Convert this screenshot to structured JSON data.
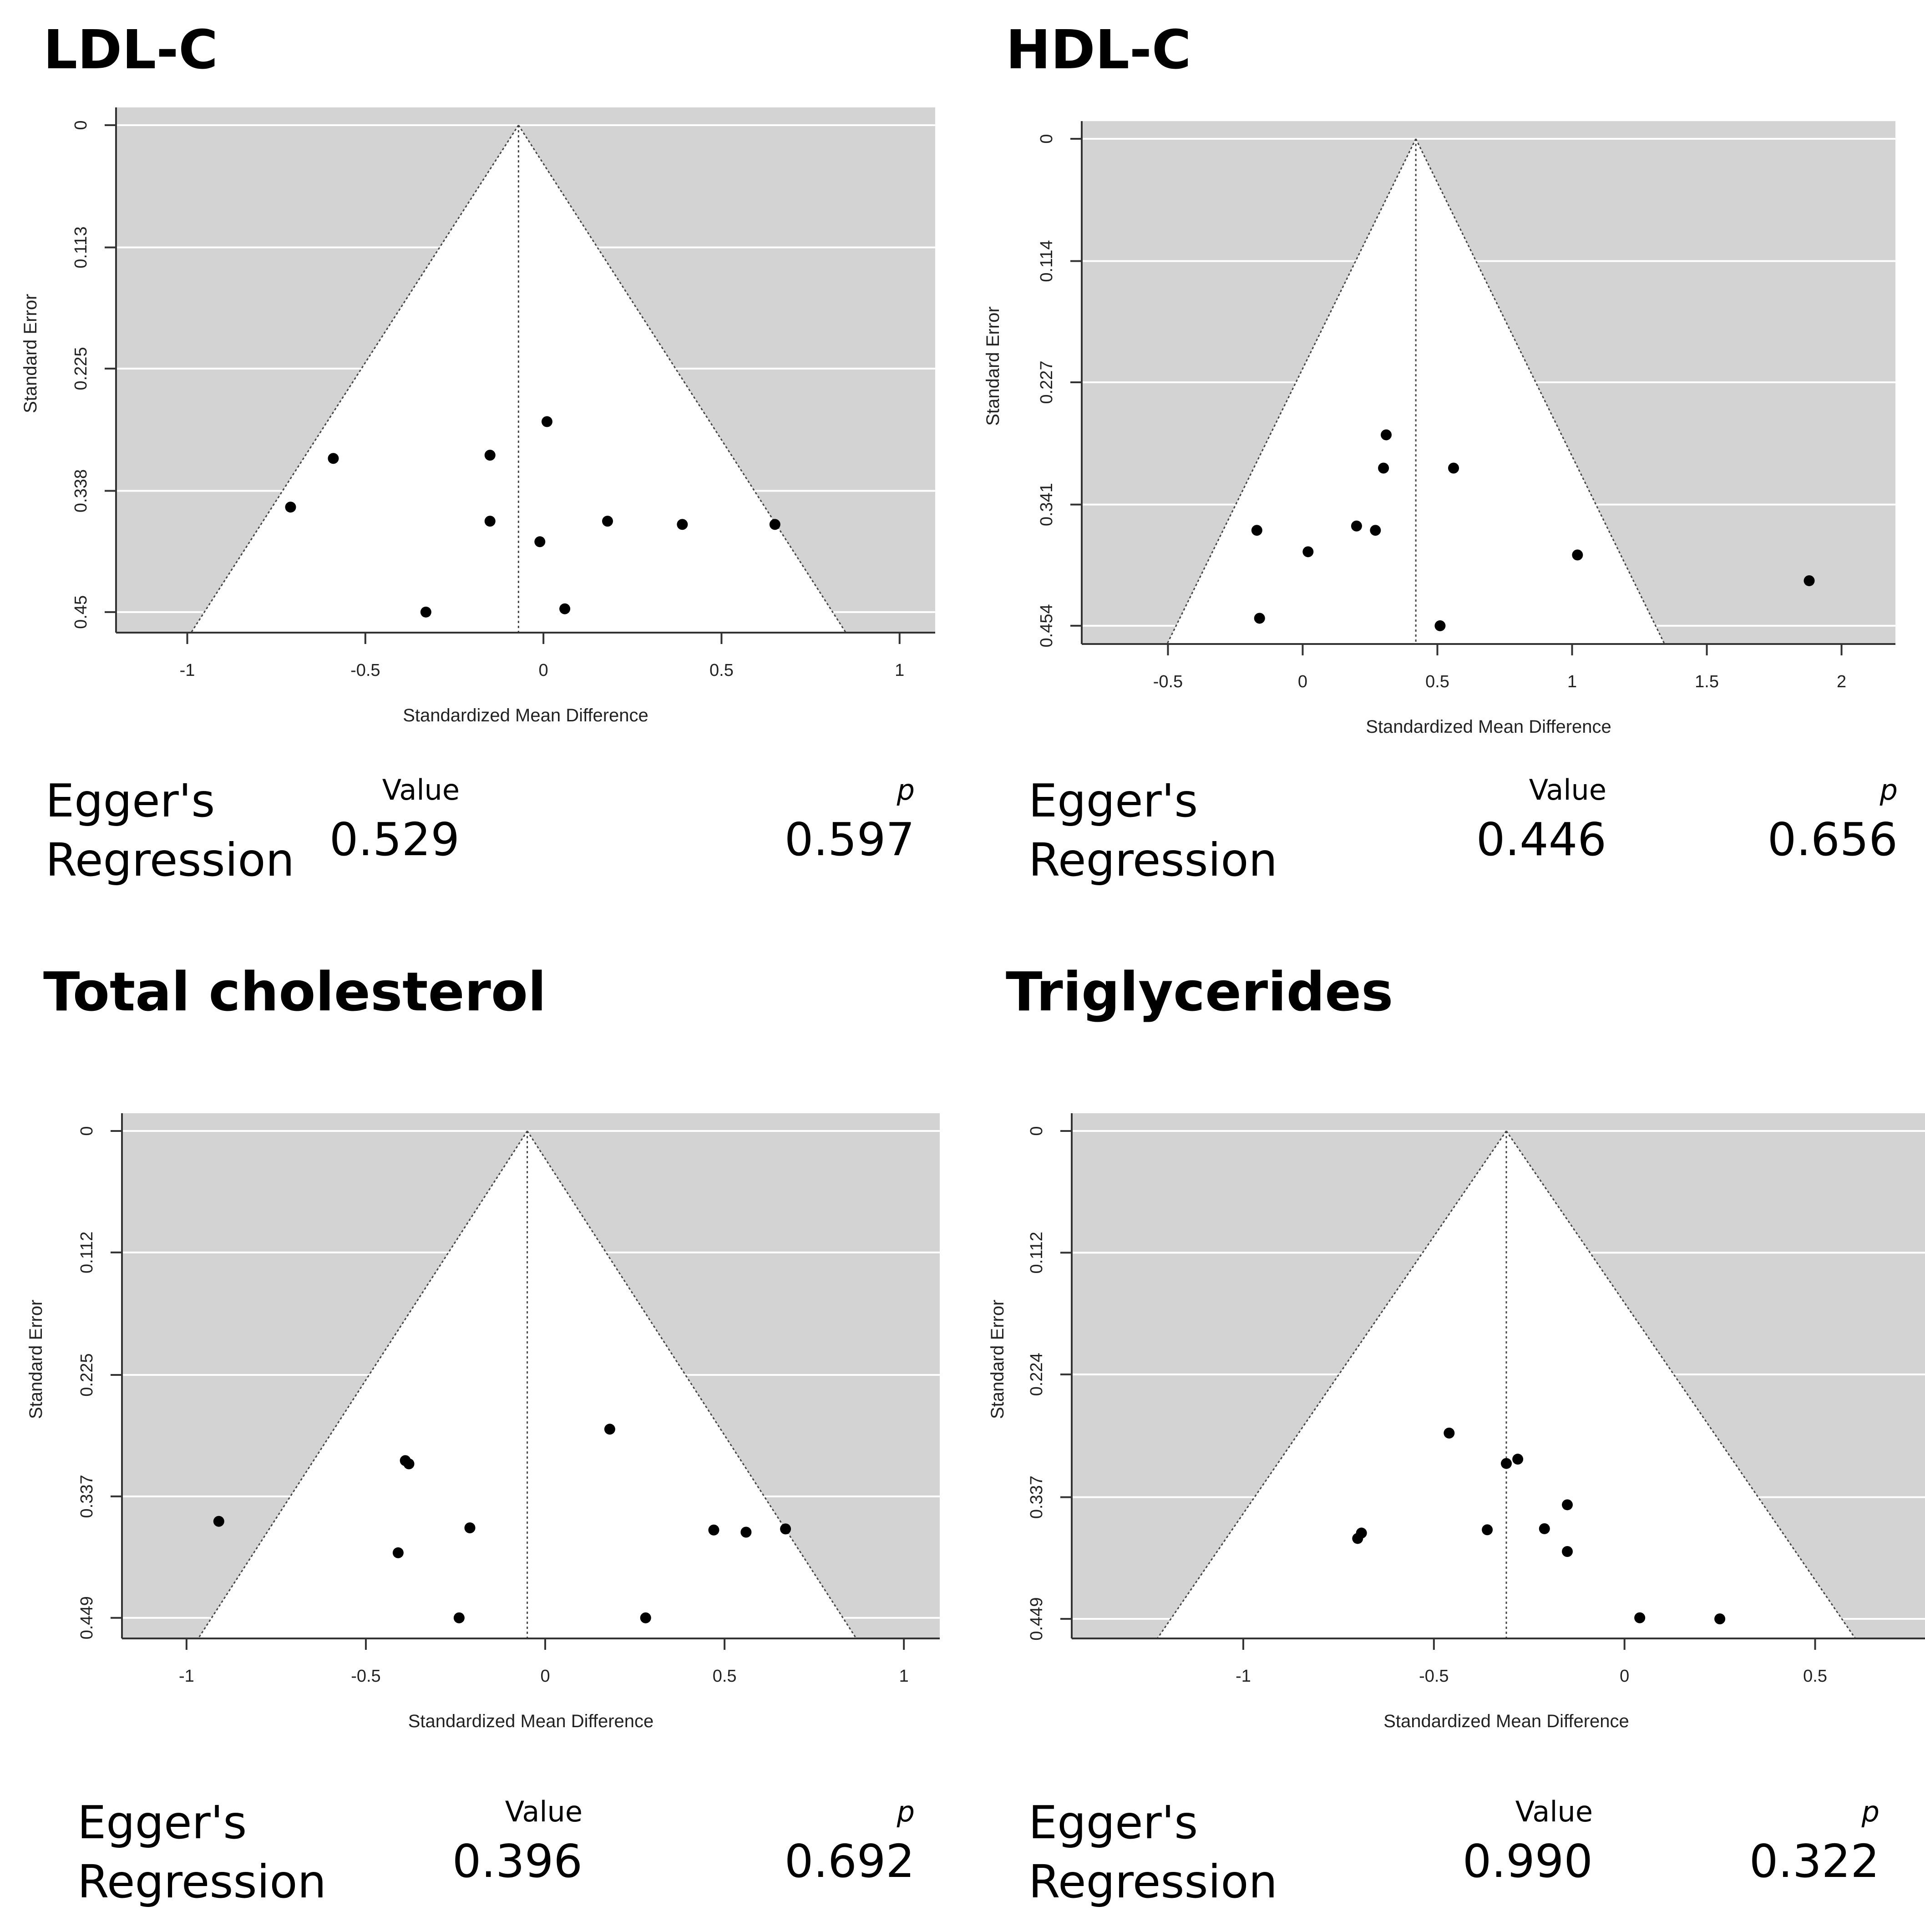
{
  "chart_data": [
    {
      "type": "scatter",
      "subtype": "funnel",
      "title": "LDL-C",
      "xlabel": "Standardized Mean Difference",
      "ylabel": "Standard Error",
      "xlim": [
        -1.2,
        1.1
      ],
      "ylim": [
        0.469,
        0
      ],
      "x_ticks": [
        -1,
        -0.5,
        0,
        0.5,
        1
      ],
      "x_tick_labels": [
        "-1",
        "-0.5",
        "0",
        "0.5",
        "1"
      ],
      "y_ticks": [
        0,
        0.113,
        0.225,
        0.338,
        0.45
      ],
      "y_tick_labels": [
        "0",
        "0.113",
        "0.225",
        "0.338",
        "0.45"
      ],
      "center": -0.07,
      "points": [
        {
          "x": 0.01,
          "y": 0.274
        },
        {
          "x": -0.59,
          "y": 0.308
        },
        {
          "x": -0.15,
          "y": 0.305
        },
        {
          "x": -0.71,
          "y": 0.353
        },
        {
          "x": -0.15,
          "y": 0.366
        },
        {
          "x": -0.01,
          "y": 0.385
        },
        {
          "x": 0.18,
          "y": 0.366
        },
        {
          "x": 0.39,
          "y": 0.369
        },
        {
          "x": 0.65,
          "y": 0.369
        },
        {
          "x": -0.33,
          "y": 0.45
        },
        {
          "x": 0.06,
          "y": 0.447
        }
      ],
      "egger": {
        "label_line1": "Egger's",
        "label_line2": "Regression",
        "value_header": "Value",
        "p_header": "p",
        "value": "0.529",
        "p": "0.597"
      }
    },
    {
      "type": "scatter",
      "subtype": "funnel",
      "title": "HDL-C",
      "xlabel": "Standardized Mean Difference",
      "ylabel": "Standard Error",
      "xlim": [
        -0.82,
        2.2
      ],
      "ylim": [
        0.471,
        0
      ],
      "x_ticks": [
        -0.5,
        0,
        0.5,
        1,
        1.5,
        2
      ],
      "x_tick_labels": [
        "-0.5",
        "0",
        "0.5",
        "1",
        "1.5",
        "2"
      ],
      "y_ticks": [
        0,
        0.114,
        0.227,
        0.341,
        0.454
      ],
      "y_tick_labels": [
        "0",
        "0.114",
        "0.227",
        "0.341",
        "0.454"
      ],
      "center": 0.42,
      "points": [
        {
          "x": 0.31,
          "y": 0.276
        },
        {
          "x": 0.3,
          "y": 0.307
        },
        {
          "x": 0.56,
          "y": 0.307
        },
        {
          "x": -0.17,
          "y": 0.365
        },
        {
          "x": 0.2,
          "y": 0.361
        },
        {
          "x": 0.27,
          "y": 0.365
        },
        {
          "x": 0.02,
          "y": 0.385
        },
        {
          "x": 1.02,
          "y": 0.388
        },
        {
          "x": 1.88,
          "y": 0.412
        },
        {
          "x": -0.16,
          "y": 0.447
        },
        {
          "x": 0.51,
          "y": 0.454
        }
      ],
      "egger": {
        "label_line1": "Egger's",
        "label_line2": "Regression",
        "value_header": "Value",
        "p_header": "p",
        "value": "0.446",
        "p": "0.656"
      }
    },
    {
      "type": "scatter",
      "subtype": "funnel",
      "title": "Total cholesterol",
      "xlabel": "Standardized Mean Difference",
      "ylabel": "Standard Error",
      "xlim": [
        -1.18,
        1.1
      ],
      "ylim": [
        0.468,
        0
      ],
      "x_ticks": [
        -1,
        -0.5,
        0,
        0.5,
        1
      ],
      "x_tick_labels": [
        "-1",
        "-0.5",
        "0",
        "0.5",
        "1"
      ],
      "y_ticks": [
        0,
        0.112,
        0.225,
        0.337,
        0.449
      ],
      "y_tick_labels": [
        "0",
        "0.112",
        "0.225",
        "0.337",
        "0.449"
      ],
      "center": -0.05,
      "points": [
        {
          "x": 0.18,
          "y": 0.275
        },
        {
          "x": -0.39,
          "y": 0.304
        },
        {
          "x": -0.38,
          "y": 0.307
        },
        {
          "x": -0.91,
          "y": 0.36
        },
        {
          "x": -0.21,
          "y": 0.366
        },
        {
          "x": -0.41,
          "y": 0.389
        },
        {
          "x": 0.47,
          "y": 0.368
        },
        {
          "x": 0.56,
          "y": 0.37
        },
        {
          "x": 0.67,
          "y": 0.367
        },
        {
          "x": -0.24,
          "y": 0.449
        },
        {
          "x": 0.28,
          "y": 0.449
        }
      ],
      "egger": {
        "label_line1": "Egger's",
        "label_line2": "Regression",
        "value_header": "Value",
        "p_header": "p",
        "value": "0.396",
        "p": "0.692"
      }
    },
    {
      "type": "scatter",
      "subtype": "funnel",
      "title": "Triglycerides",
      "xlabel": "Standardized Mean Difference",
      "ylabel": "Standard Error",
      "xlim": [
        -1.45,
        0.83
      ],
      "ylim": [
        0.467,
        0
      ],
      "x_ticks": [
        -1,
        -0.5,
        0,
        0.5
      ],
      "x_tick_labels": [
        "-1",
        "-0.5",
        "0",
        "0.5"
      ],
      "y_ticks": [
        0,
        0.112,
        0.224,
        0.337,
        0.449
      ],
      "y_tick_labels": [
        "0",
        "0.112",
        "0.224",
        "0.337",
        "0.449"
      ],
      "center": -0.31,
      "points": [
        {
          "x": -0.46,
          "y": 0.278
        },
        {
          "x": -0.28,
          "y": 0.302
        },
        {
          "x": -0.31,
          "y": 0.306
        },
        {
          "x": -0.15,
          "y": 0.344
        },
        {
          "x": -0.69,
          "y": 0.37
        },
        {
          "x": -0.7,
          "y": 0.375
        },
        {
          "x": -0.36,
          "y": 0.367
        },
        {
          "x": -0.21,
          "y": 0.366
        },
        {
          "x": -0.15,
          "y": 0.387
        },
        {
          "x": 0.04,
          "y": 0.448
        },
        {
          "x": 0.25,
          "y": 0.449
        }
      ],
      "egger": {
        "label_line1": "Egger's",
        "label_line2": "Regression",
        "value_header": "Value",
        "p_header": "p",
        "value": "0.990",
        "p": "0.322"
      }
    }
  ]
}
